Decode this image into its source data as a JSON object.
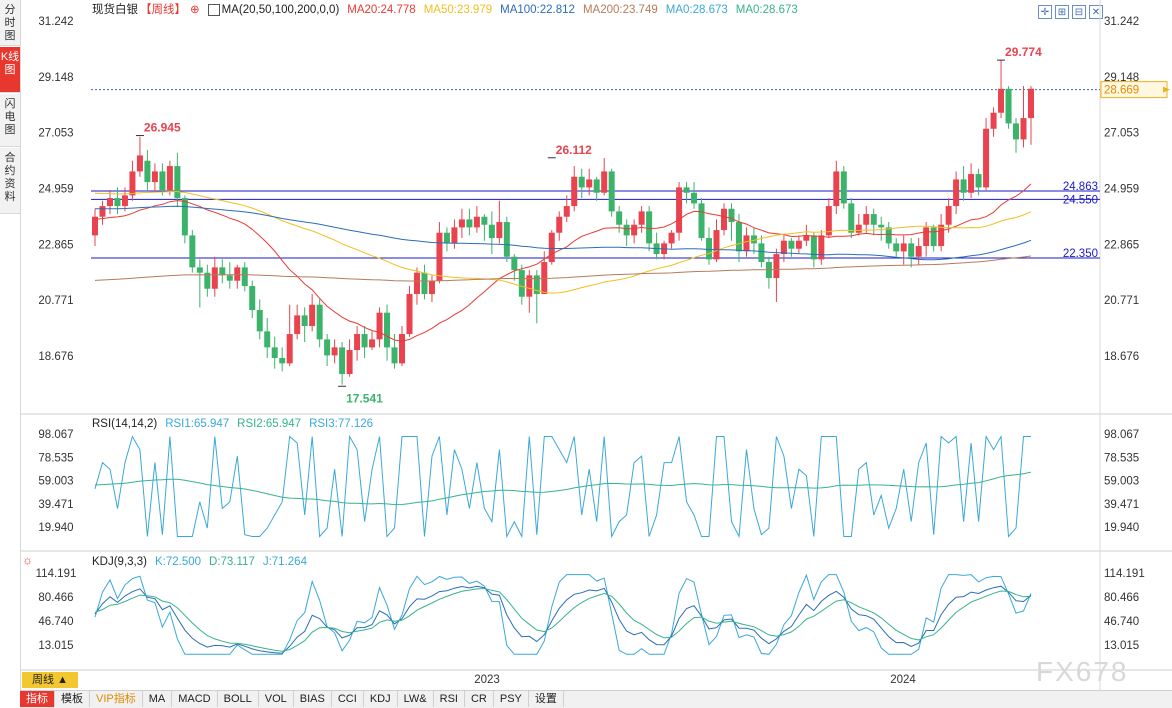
{
  "side_tabs": [
    {
      "label": "分时图",
      "active": false
    },
    {
      "label": "K线图",
      "active": true
    },
    {
      "label": "闪电图",
      "active": false
    },
    {
      "label": "合约资料",
      "active": false
    }
  ],
  "header": {
    "instrument": "现货白银",
    "period": "【周线】",
    "ma_config": "MA(20,50,100,200,0,0)",
    "ma20": "MA20:24.778",
    "ma50": "MA50:23.979",
    "ma100": "MA100:22.812",
    "ma200": "MA200:23.749",
    "ma0a": "MA0:28.673",
    "ma0b": "MA0:28.673"
  },
  "colors": {
    "up": "#e8434f",
    "down": "#3bb36a",
    "ma20": "#e83b33",
    "ma50": "#f0c020",
    "ma100": "#2a6db8",
    "ma200": "#b87a5a",
    "rsi1": "#3aa8d8",
    "rsi2": "#36b48a",
    "hline": "#1a1ac8"
  },
  "main": {
    "y_ticks": [
      "31.242",
      "29.148",
      "27.053",
      "24.959",
      "22.865",
      "20.771",
      "18.676"
    ],
    "current_price": "28.669",
    "annotations": {
      "high": "29.774",
      "mid_high": "26.112",
      "left_high": "26.945",
      "low": "17.541"
    },
    "hline_labels": [
      "24.863",
      "24.550",
      "22.350"
    ]
  },
  "rsi": {
    "legend": "RSI(14,14,2)",
    "rsi1": "RSI1:65.947",
    "rsi2": "RSI2:65.947",
    "rsi3": "RSI3:77.126",
    "y_ticks": [
      "98.067",
      "78.535",
      "59.003",
      "39.471",
      "19.940"
    ]
  },
  "kdj": {
    "legend": "KDJ(9,3,3)",
    "k": "K:72.500",
    "d": "D:73.117",
    "j": "J:71.264",
    "y_ticks": [
      "114.191",
      "80.466",
      "46.740",
      "13.015"
    ]
  },
  "x_labels": [
    "2023",
    "2024"
  ],
  "period_button": "周线 ▲",
  "bottom_tabs": [
    "指标",
    "模板",
    "VIP指标",
    "MA",
    "MACD",
    "BOLL",
    "VOL",
    "BIAS",
    "CCI",
    "KDJ",
    "LW&",
    "RSI",
    "CR",
    "PSY",
    "设置"
  ],
  "watermark": "FX678"
}
